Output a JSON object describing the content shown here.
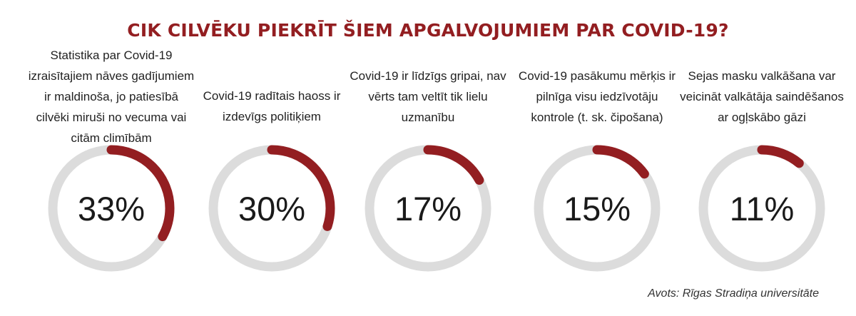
{
  "chart_data": {
    "type": "donut",
    "title": "CIK CILVĒKU PIEKRĪT ŠIEM APGALVOJUMIEM PAR COVID-19?",
    "items": [
      {
        "statement": "Statistika par Covid-19 izraisītajiem nāves gadījumiem ir maldinoša, jo patiesībā cilvēki miruši no vecuma vai citām climībām",
        "value": 33,
        "label": "33%"
      },
      {
        "statement": "Covid-19 radītais haoss ir izdevīgs politiķiem",
        "value": 30,
        "label": "30%"
      },
      {
        "statement": "Covid-19 ir līdzīgs gripai, nav vērts tam veltīt tik lielu uzmanību",
        "value": 17,
        "label": "17%"
      },
      {
        "statement": "Covid-19 pasākumu mērķis ir pilnīga visu iedzīvotāju kontrole (t. sk. čipošana)",
        "value": 15,
        "label": "15%"
      },
      {
        "statement": "Sejas masku valkāšana var veicināt valkātāja saindēšanos ar ogļskābo gāzi",
        "value": 11,
        "label": "11%"
      }
    ],
    "max": 100,
    "colors": {
      "track": "#dcdcdc",
      "fill": "#931e21",
      "title": "#931e21"
    }
  },
  "source": "Avots: Rīgas Stradiņa universitāte"
}
